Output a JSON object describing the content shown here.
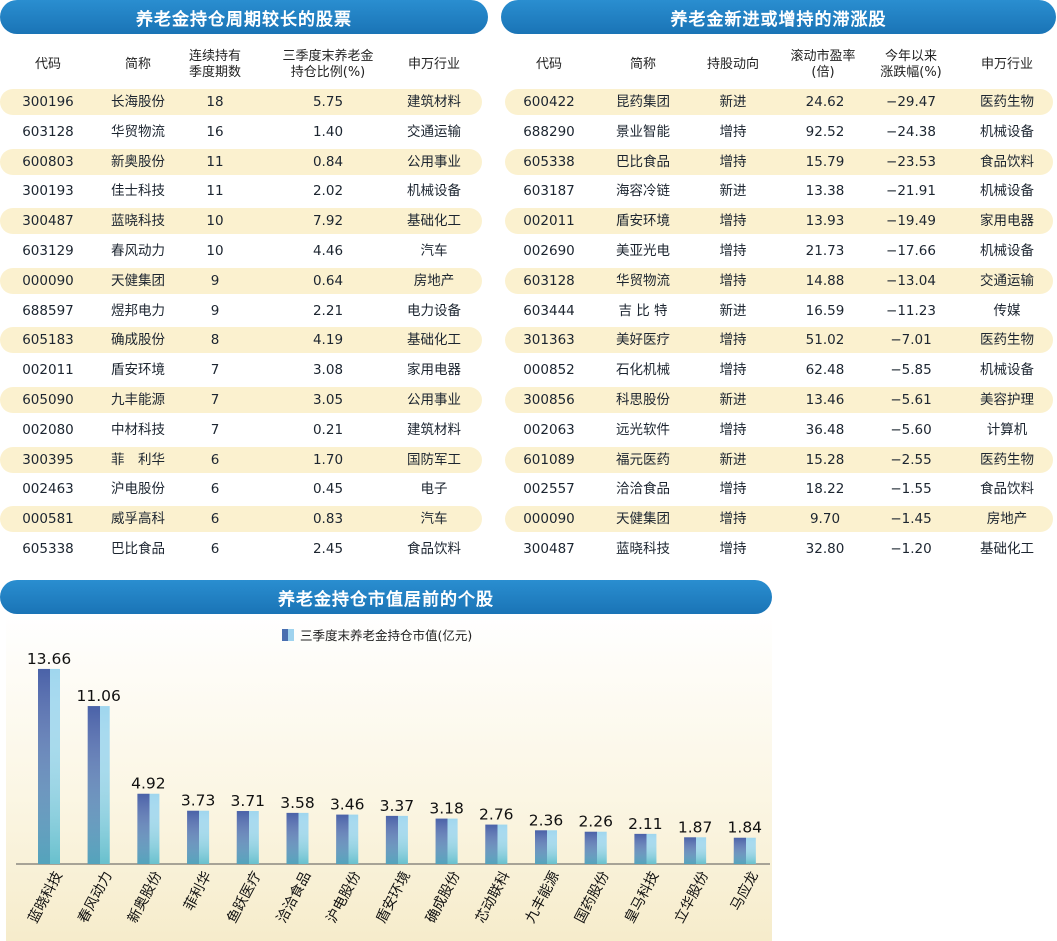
{
  "left_table": {
    "title": "养老金持仓周期较长的股票",
    "headers": [
      "代码",
      "简称",
      "连续持有\n季度期数",
      "三季度末养老金\n持仓比例(%)",
      "申万行业"
    ],
    "rows": [
      [
        "300196",
        "长海股份",
        "18",
        "5.75",
        "建筑材料"
      ],
      [
        "603128",
        "华贸物流",
        "16",
        "1.40",
        "交通运输"
      ],
      [
        "600803",
        "新奥股份",
        "11",
        "0.84",
        "公用事业"
      ],
      [
        "300193",
        "佳士科技",
        "11",
        "2.02",
        "机械设备"
      ],
      [
        "300487",
        "蓝晓科技",
        "10",
        "7.92",
        "基础化工"
      ],
      [
        "603129",
        "春风动力",
        "10",
        "4.46",
        "汽车"
      ],
      [
        "000090",
        "天健集团",
        "9",
        "0.64",
        "房地产"
      ],
      [
        "688597",
        "煜邦电力",
        "9",
        "2.21",
        "电力设备"
      ],
      [
        "605183",
        "确成股份",
        "8",
        "4.19",
        "基础化工"
      ],
      [
        "002011",
        "盾安环境",
        "7",
        "3.08",
        "家用电器"
      ],
      [
        "605090",
        "九丰能源",
        "7",
        "3.05",
        "公用事业"
      ],
      [
        "002080",
        "中材科技",
        "7",
        "0.21",
        "建筑材料"
      ],
      [
        "300395",
        "菲　利华",
        "6",
        "1.70",
        "国防军工"
      ],
      [
        "002463",
        "沪电股份",
        "6",
        "0.45",
        "电子"
      ],
      [
        "000581",
        "威孚高科",
        "6",
        "0.83",
        "汽车"
      ],
      [
        "605338",
        "巴比食品",
        "6",
        "2.45",
        "食品饮料"
      ]
    ]
  },
  "right_table": {
    "title": "养老金新进或增持的滞涨股",
    "headers": [
      "代码",
      "简称",
      "持股动向",
      "滚动市盈率\n(倍)",
      "今年以来\n涨跌幅(%)",
      "申万行业"
    ],
    "rows": [
      [
        "600422",
        "昆药集团",
        "新进",
        "24.62",
        "−29.47",
        "医药生物"
      ],
      [
        "688290",
        "景业智能",
        "增持",
        "92.52",
        "−24.38",
        "机械设备"
      ],
      [
        "605338",
        "巴比食品",
        "增持",
        "15.79",
        "−23.53",
        "食品饮料"
      ],
      [
        "603187",
        "海容冷链",
        "新进",
        "13.38",
        "−21.91",
        "机械设备"
      ],
      [
        "002011",
        "盾安环境",
        "增持",
        "13.93",
        "−19.49",
        "家用电器"
      ],
      [
        "002690",
        "美亚光电",
        "增持",
        "21.73",
        "−17.66",
        "机械设备"
      ],
      [
        "603128",
        "华贸物流",
        "增持",
        "14.88",
        "−13.04",
        "交通运输"
      ],
      [
        "603444",
        "吉 比 特",
        "新进",
        "16.59",
        "−11.23",
        "传媒"
      ],
      [
        "301363",
        "美好医疗",
        "增持",
        "51.02",
        "−7.01",
        "医药生物"
      ],
      [
        "000852",
        "石化机械",
        "增持",
        "62.48",
        "−5.85",
        "机械设备"
      ],
      [
        "300856",
        "科思股份",
        "新进",
        "13.46",
        "−5.61",
        "美容护理"
      ],
      [
        "002063",
        "远光软件",
        "增持",
        "36.48",
        "−5.60",
        "计算机"
      ],
      [
        "601089",
        "福元医药",
        "新进",
        "15.28",
        "−2.55",
        "医药生物"
      ],
      [
        "002557",
        "洽洽食品",
        "增持",
        "18.22",
        "−1.55",
        "食品饮料"
      ],
      [
        "000090",
        "天健集团",
        "增持",
        "9.70",
        "−1.45",
        "房地产"
      ],
      [
        "300487",
        "蓝晓科技",
        "增持",
        "32.80",
        "−1.20",
        "基础化工"
      ]
    ]
  },
  "chart_data": {
    "type": "bar",
    "title": "养老金持仓市值居前的个股",
    "categories": [
      "蓝晓科技",
      "春风动力",
      "新奥股份",
      "菲利华",
      "鱼跃医疗",
      "洽洽食品",
      "沪电股份",
      "盾安环境",
      "确成股份",
      "芯动联科",
      "九丰能源",
      "国药股份",
      "皇马科技",
      "立华股份",
      "马应龙"
    ],
    "series": [
      {
        "name": "三季度末养老金持仓市值(亿元)",
        "values": [
          13.66,
          11.06,
          4.92,
          3.73,
          3.71,
          3.58,
          3.46,
          3.37,
          3.18,
          2.76,
          2.36,
          2.26,
          2.11,
          1.87,
          1.84
        ]
      }
    ],
    "ylim": [
      0,
      14
    ],
    "legend": "top",
    "grid": false,
    "colors": {
      "bar_dark": "#4a62a8",
      "bar_light": "#9fd6ee",
      "bar_base": "#56b9c2"
    }
  }
}
